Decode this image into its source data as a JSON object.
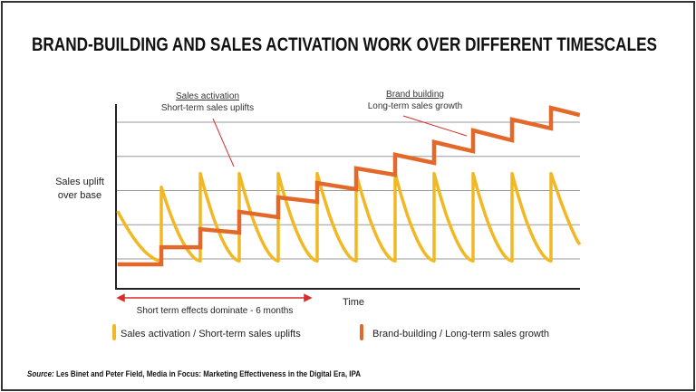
{
  "chart_data": {
    "type": "line",
    "title": "BRAND-BUILDING AND SALES ACTIVATION WORK OVER DIFFERENT TIMESCALES",
    "xlabel": "Time",
    "ylabel": [
      "Sales uplift",
      "over base"
    ],
    "xlim": [
      -0.12,
      11.74
    ],
    "ylim": [
      0.13,
      5.5
    ],
    "grid": true,
    "gridlines_y": [
      1,
      2,
      3,
      4,
      5
    ],
    "legend_placement": "bottom",
    "colors": {
      "sales_activation": "#f2b824",
      "brand_building": "#e2692a",
      "annotation": "#d62d2d",
      "grid": "#999999"
    },
    "series": [
      {
        "name": "Sales activation / Short-term sales uplifts",
        "start_value": 2.4,
        "spike_times": [
          1,
          2,
          3,
          4,
          5,
          6,
          7,
          8,
          9,
          10,
          11
        ],
        "peak_values": [
          3.1,
          3.5,
          3.5,
          3.5,
          3.5,
          3.5,
          3.5,
          3.5,
          3.5,
          3.5,
          3.5
        ],
        "trough_value": 0.94,
        "end_value": 1.42
      },
      {
        "name": "Brand-building / Long-term sales growth",
        "step_times": [
          1,
          2,
          3,
          4,
          5,
          6,
          7,
          8,
          9,
          10,
          11
        ],
        "segments": [
          [
            0.84,
            0.84
          ],
          [
            1.34,
            1.34
          ],
          [
            1.87,
            1.77
          ],
          [
            2.38,
            2.22
          ],
          [
            2.8,
            2.67
          ],
          [
            3.22,
            3.04
          ],
          [
            3.65,
            3.46
          ],
          [
            4.05,
            3.81
          ],
          [
            4.42,
            4.15
          ],
          [
            4.76,
            4.47
          ],
          [
            5.08,
            4.82
          ],
          [
            5.42,
            5.21
          ]
        ]
      }
    ],
    "annotations": {
      "sales_title": "Sales activation",
      "sales_sub": "Short-term sales uplifts",
      "brand_title": "Brand building",
      "brand_sub": "Long-term sales growth",
      "short_term": "Short term effects dominate - 6 months"
    },
    "legend": [
      "Sales activation / Short-term sales uplifts",
      "Brand-building / Long-term sales growth"
    ]
  },
  "source": {
    "label": "Source:",
    "text": "Les Binet and Peter Field, Media in Focus: Marketing Effectiveness in the Digital Era, IPA"
  }
}
